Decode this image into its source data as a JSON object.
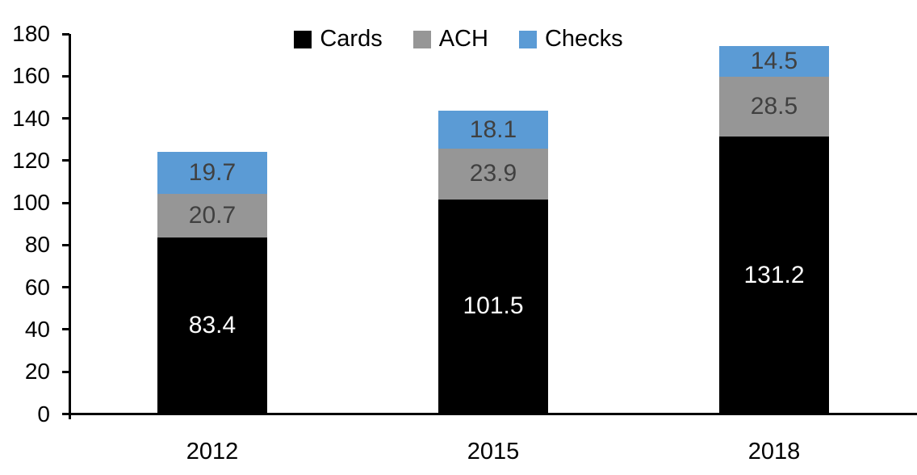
{
  "chart_data": {
    "type": "bar",
    "stacked": true,
    "title": "",
    "categories": [
      "2012",
      "2015",
      "2018"
    ],
    "series": [
      {
        "name": "Cards",
        "values": [
          83.4,
          101.5,
          131.2
        ],
        "color": "#000000",
        "label_color": "#FFFFFF"
      },
      {
        "name": "ACH",
        "values": [
          20.7,
          23.9,
          28.5
        ],
        "color": "#969696",
        "label_color": "#404040"
      },
      {
        "name": "Checks",
        "values": [
          19.7,
          18.1,
          14.5
        ],
        "color": "#5B9BD5",
        "label_color": "#404040"
      }
    ],
    "ylim": [
      0,
      180
    ],
    "yticks": [
      0,
      20,
      40,
      60,
      80,
      100,
      120,
      140,
      160,
      180
    ],
    "grid": false,
    "legend_position": "top-center",
    "axis_color": "#000000",
    "background": "#FFFFFF"
  }
}
